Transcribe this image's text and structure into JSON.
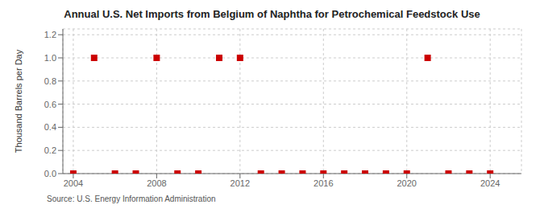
{
  "chart_data": {
    "type": "scatter",
    "title": "Annual U.S. Net Imports from Belgium of Naphtha for Petrochemical Feedstock Use",
    "ylabel": "Thousand Barrels per Day",
    "annotations": [
      "Source: U.S. Energy Information Administration"
    ],
    "x": [
      2004,
      2005,
      2006,
      2007,
      2008,
      2009,
      2010,
      2011,
      2012,
      2013,
      2014,
      2015,
      2016,
      2017,
      2018,
      2019,
      2020,
      2021,
      2022,
      2023,
      2024
    ],
    "values": [
      0,
      1,
      0,
      0,
      1,
      0,
      0,
      1,
      1,
      0,
      0,
      0,
      0,
      0,
      0,
      0,
      0,
      1,
      0,
      0,
      0
    ],
    "color": "#cc0000",
    "marker": "square",
    "xlim": [
      2003.5,
      2025.5
    ],
    "xticks": [
      2004,
      2008,
      2012,
      2016,
      2020,
      2024
    ],
    "ylim": [
      0.0,
      1.25
    ],
    "yticks": [
      {
        "value": 0,
        "label": "0.0"
      },
      0.2,
      0.4,
      0.6,
      0.8,
      {
        "value": 1,
        "label": "1.0"
      },
      1.2
    ],
    "grid": true
  }
}
